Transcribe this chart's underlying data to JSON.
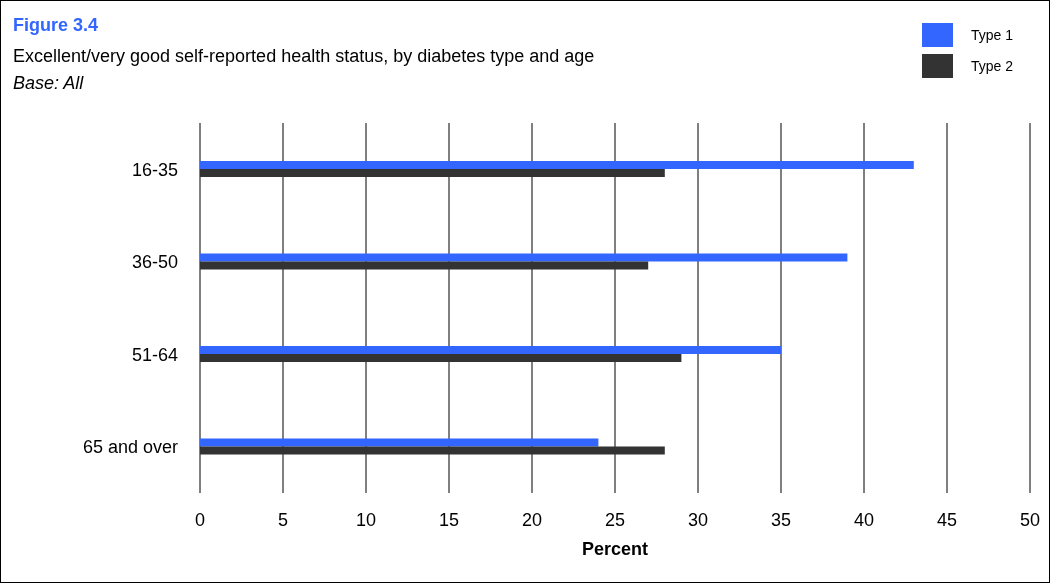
{
  "chart_data": {
    "type": "bar",
    "orientation": "horizontal",
    "title": "Figure 3.4",
    "subtitle": "Excellent/very good self-reported health status, by diabetes type and age",
    "annotations": [
      "Base: All"
    ],
    "categories": [
      "16-35",
      "36-50",
      "51-64",
      "65 and over"
    ],
    "series": [
      {
        "name": "Type 1",
        "color": "#3366ff",
        "values": [
          43,
          39,
          35,
          24
        ]
      },
      {
        "name": "Type 2",
        "color": "#333333",
        "values": [
          28,
          27,
          29,
          28
        ]
      }
    ],
    "xlabel": "Percent",
    "xlim": [
      0,
      50
    ],
    "xticks": [
      0,
      5,
      10,
      15,
      20,
      25,
      30,
      35,
      40,
      45,
      50
    ],
    "grid": "x",
    "legend": "top right"
  }
}
